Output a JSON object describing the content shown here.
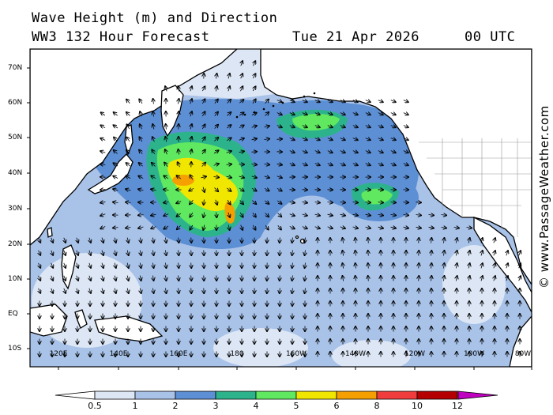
{
  "title": {
    "line1": "Wave Height (m) and Direction",
    "line2_model": "WW3 132 Hour Forecast",
    "line2_date": "Tue 21 Apr 2026",
    "line2_time": "00 UTC"
  },
  "latitude_labels": [
    "70N",
    "60N",
    "50N",
    "40N",
    "30N",
    "20N",
    "10N",
    "EQ",
    "10S"
  ],
  "longitude_labels": [
    "120E",
    "140E",
    "160E",
    "180",
    "160W",
    "140W",
    "120W",
    "100W",
    "80W"
  ],
  "colorbar": {
    "unit": "m",
    "tick_labels": [
      "0.5",
      "1",
      "2",
      "3",
      "4",
      "5",
      "6",
      "8",
      "10",
      "12"
    ],
    "colors": [
      "#dce6f5",
      "#a8c2e8",
      "#5d8fd4",
      "#2db38c",
      "#5fe860",
      "#f0e600",
      "#f5a000",
      "#f03c3c",
      "#b40000",
      "#c000c0"
    ]
  },
  "watermark": "© www.PassageWeather.com",
  "colors": {
    "ocean_base": "#a8c2e8",
    "land": "#ffffff",
    "coast": "#000000"
  }
}
